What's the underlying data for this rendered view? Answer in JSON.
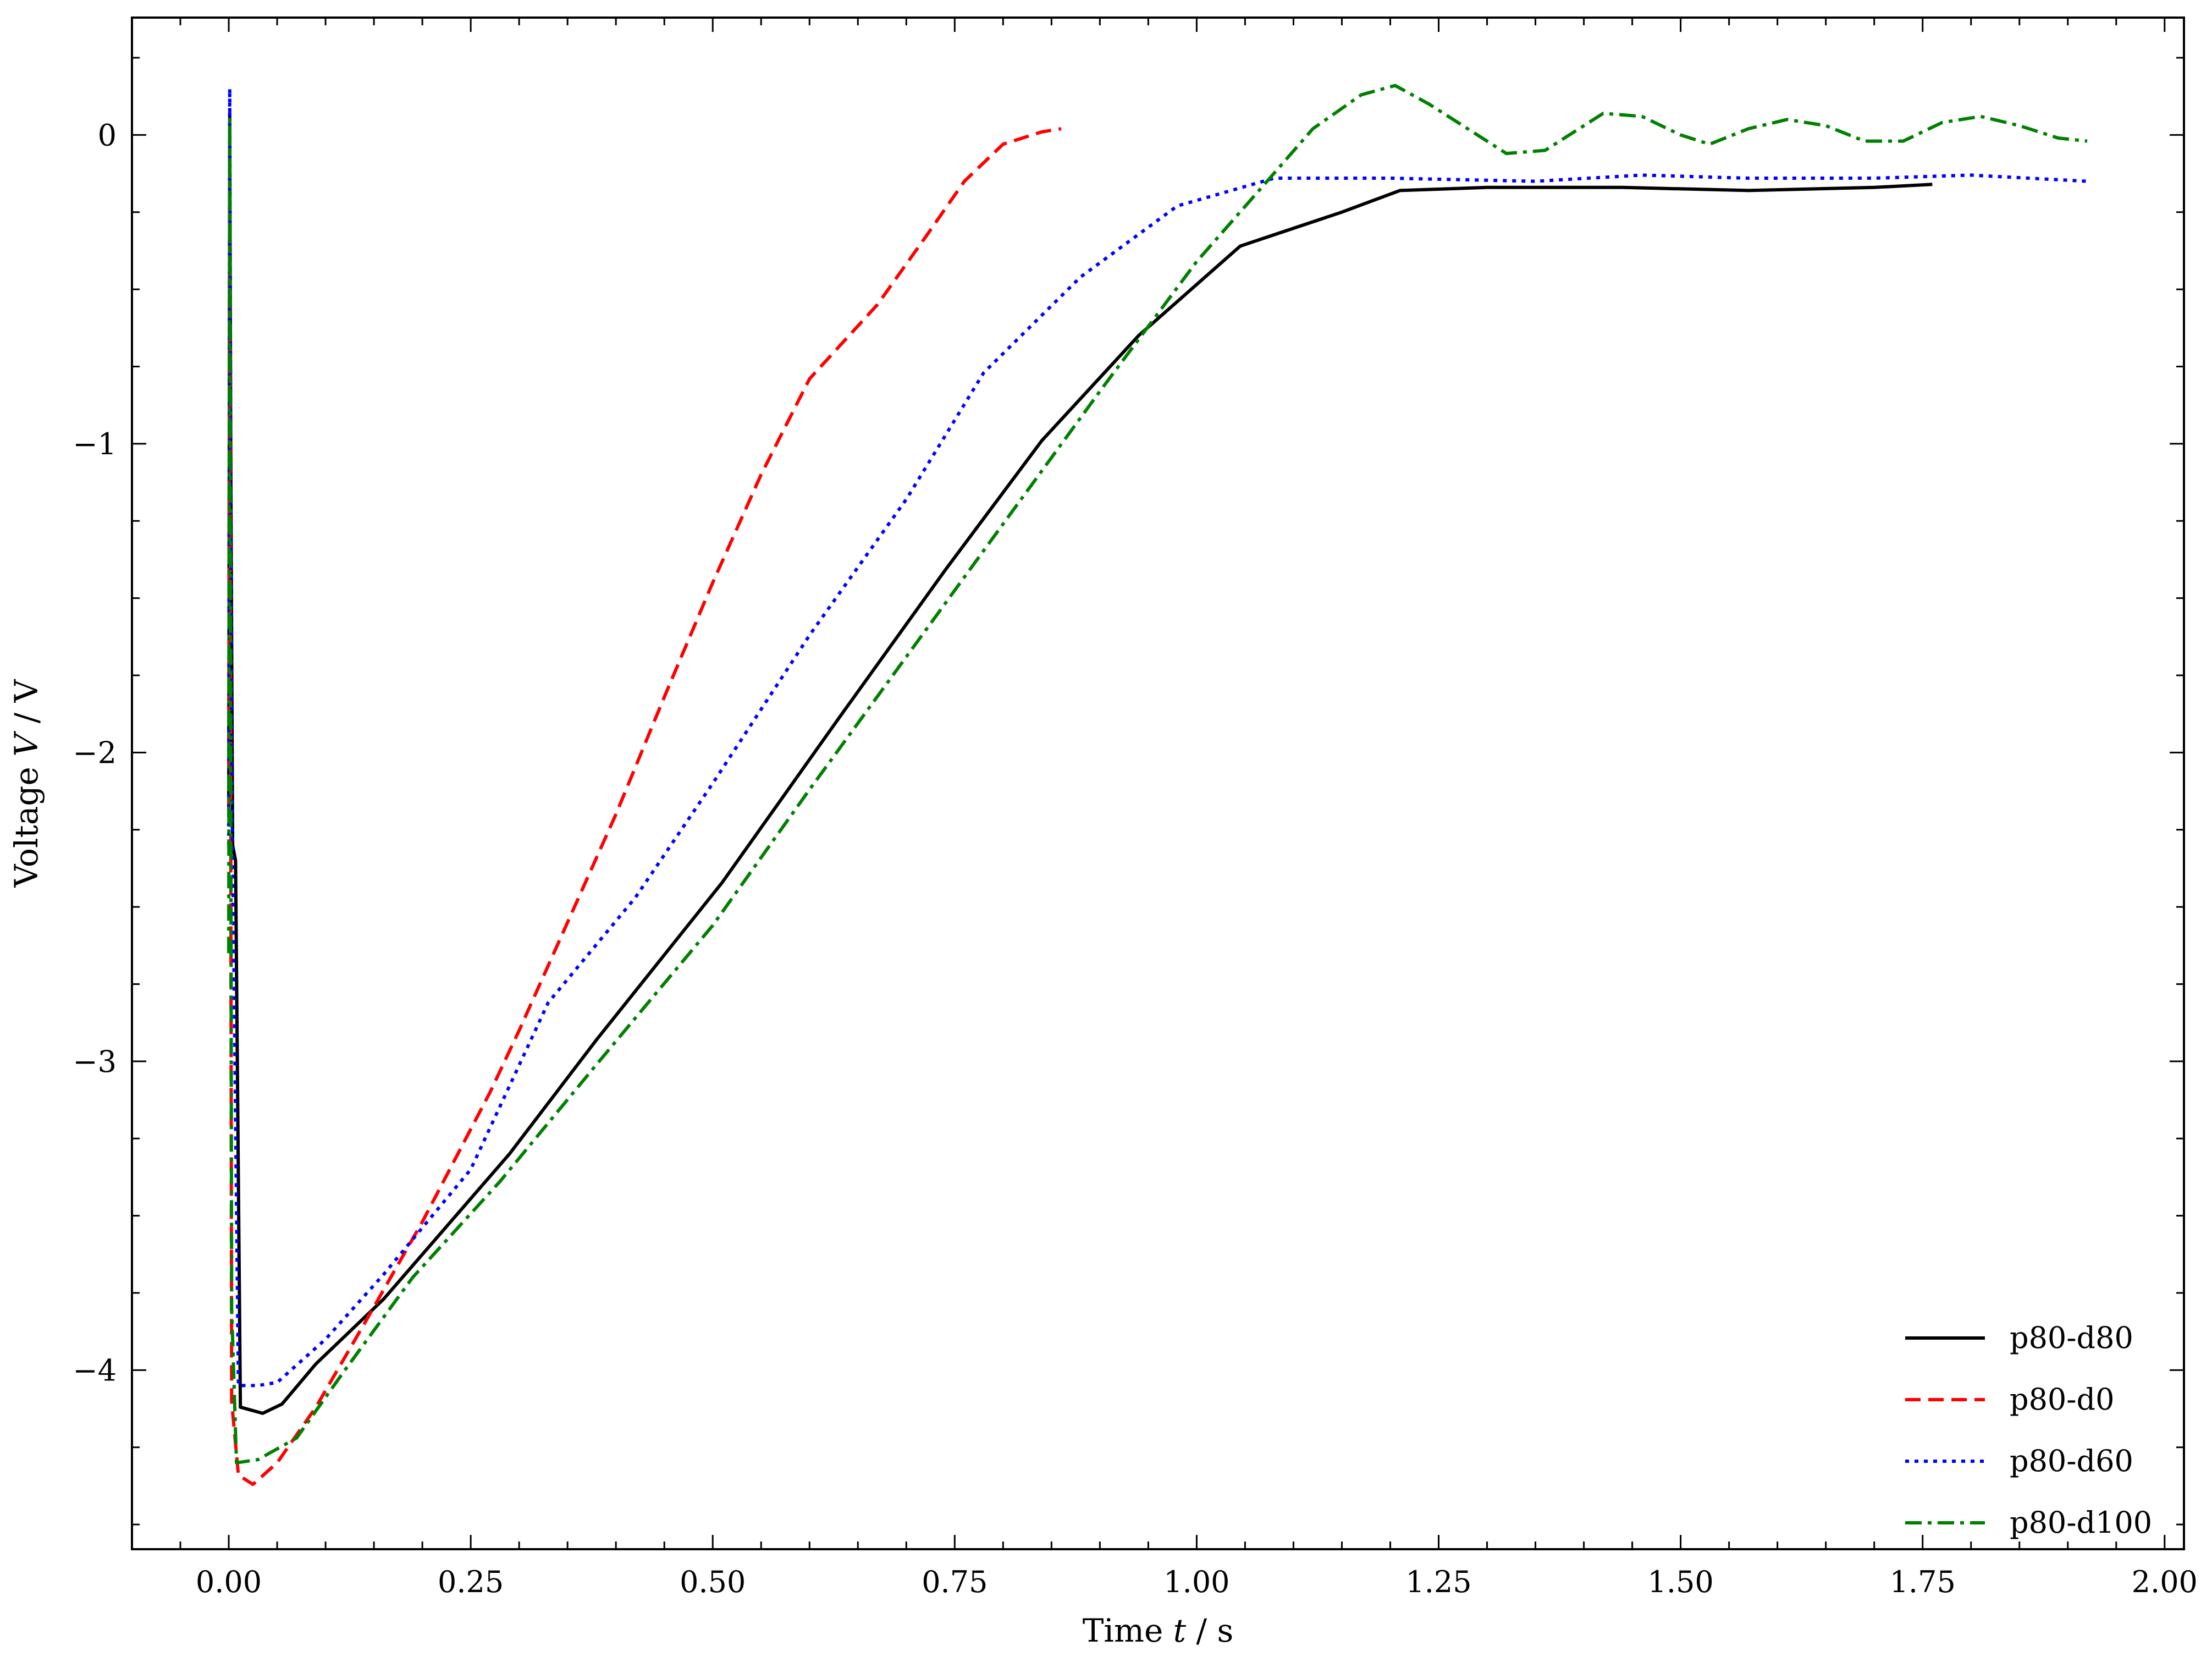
{
  "chart_data": {
    "type": "line",
    "xlabel_prefix": "Time ",
    "xlabel_var": "t",
    "xlabel_suffix": " / s",
    "ylabel_prefix": "Voltage ",
    "ylabel_var": "V",
    "ylabel_suffix": " / V",
    "xlim": [
      -0.1,
      2.02
    ],
    "ylim": [
      -4.58,
      0.38
    ],
    "xticks": [
      0.0,
      0.25,
      0.5,
      0.75,
      1.0,
      1.25,
      1.5,
      1.75,
      2.0
    ],
    "xtick_labels": [
      "0.00",
      "0.25",
      "0.50",
      "0.75",
      "1.00",
      "1.25",
      "1.50",
      "1.75",
      "2.00"
    ],
    "yticks": [
      0,
      -1,
      -2,
      -3,
      -4
    ],
    "ytick_labels": [
      "0",
      "−1",
      "−2",
      "−3",
      "−4"
    ],
    "legend_position": "bottom-right",
    "grid": false,
    "series": [
      {
        "name": "p80-d80",
        "color": "#000000",
        "style": "solid",
        "x": [
          0.0,
          0.001,
          0.002,
          0.004,
          0.007,
          0.012,
          0.035,
          0.055,
          0.09,
          0.16,
          0.29,
          0.38,
          0.51,
          0.63,
          0.74,
          0.84,
          0.94,
          1.045,
          1.15,
          1.21,
          1.3,
          1.44,
          1.57,
          1.7,
          1.76
        ],
        "y": [
          -2.2,
          0.07,
          -1.0,
          -2.3,
          -2.35,
          -4.12,
          -4.14,
          -4.11,
          -3.98,
          -3.77,
          -3.3,
          -2.93,
          -2.42,
          -1.89,
          -1.41,
          -0.99,
          -0.65,
          -0.36,
          -0.25,
          -0.18,
          -0.17,
          -0.17,
          -0.18,
          -0.17,
          -0.16
        ]
      },
      {
        "name": "p80-d0",
        "color": "#ff0000",
        "style": "dashed",
        "x": [
          0.0,
          0.001,
          0.003,
          0.01,
          0.025,
          0.05,
          0.09,
          0.14,
          0.2,
          0.27,
          0.3,
          0.35,
          0.4,
          0.45,
          0.5,
          0.55,
          0.6,
          0.67,
          0.72,
          0.76,
          0.8,
          0.84,
          0.86
        ],
        "y": [
          -2.2,
          -0.1,
          -4.1,
          -4.34,
          -4.37,
          -4.3,
          -4.12,
          -3.85,
          -3.52,
          -3.1,
          -2.9,
          -2.55,
          -2.2,
          -1.82,
          -1.45,
          -1.1,
          -0.79,
          -0.55,
          -0.33,
          -0.15,
          -0.03,
          0.01,
          0.02
        ]
      },
      {
        "name": "p80-d60",
        "color": "#0000ff",
        "style": "dotted",
        "x": [
          0.0,
          0.001,
          0.003,
          0.01,
          0.03,
          0.05,
          0.1,
          0.16,
          0.25,
          0.33,
          0.42,
          0.5,
          0.6,
          0.7,
          0.78,
          0.88,
          0.98,
          1.08,
          1.2,
          1.35,
          1.46,
          1.57,
          1.7,
          1.8,
          1.92
        ],
        "y": [
          -2.3,
          0.15,
          -2.0,
          -4.05,
          -4.05,
          -4.04,
          -3.9,
          -3.69,
          -3.35,
          -2.81,
          -2.47,
          -2.1,
          -1.62,
          -1.18,
          -0.77,
          -0.46,
          -0.23,
          -0.14,
          -0.14,
          -0.15,
          -0.13,
          -0.14,
          -0.14,
          -0.13,
          -0.15
        ]
      },
      {
        "name": "p80-d100",
        "color": "#008000",
        "style": "dashdot",
        "x": [
          0.0,
          0.001,
          0.003,
          0.008,
          0.03,
          0.07,
          0.12,
          0.19,
          0.28,
          0.38,
          0.5,
          0.6,
          0.7,
          0.8,
          0.9,
          1.0,
          1.07,
          1.12,
          1.17,
          1.205,
          1.24,
          1.28,
          1.32,
          1.36,
          1.42,
          1.46,
          1.5,
          1.53,
          1.57,
          1.61,
          1.65,
          1.69,
          1.73,
          1.77,
          1.81,
          1.85,
          1.89,
          1.92
        ],
        "y": [
          -2.65,
          0.05,
          -3.8,
          -4.3,
          -4.29,
          -4.22,
          -4.0,
          -3.7,
          -3.39,
          -3.01,
          -2.56,
          -2.12,
          -1.69,
          -1.26,
          -0.83,
          -0.41,
          -0.16,
          0.02,
          0.13,
          0.16,
          0.1,
          0.02,
          -0.06,
          -0.05,
          0.07,
          0.06,
          0.0,
          -0.03,
          0.02,
          0.05,
          0.03,
          -0.02,
          -0.02,
          0.04,
          0.06,
          0.03,
          -0.01,
          -0.02
        ]
      }
    ]
  }
}
